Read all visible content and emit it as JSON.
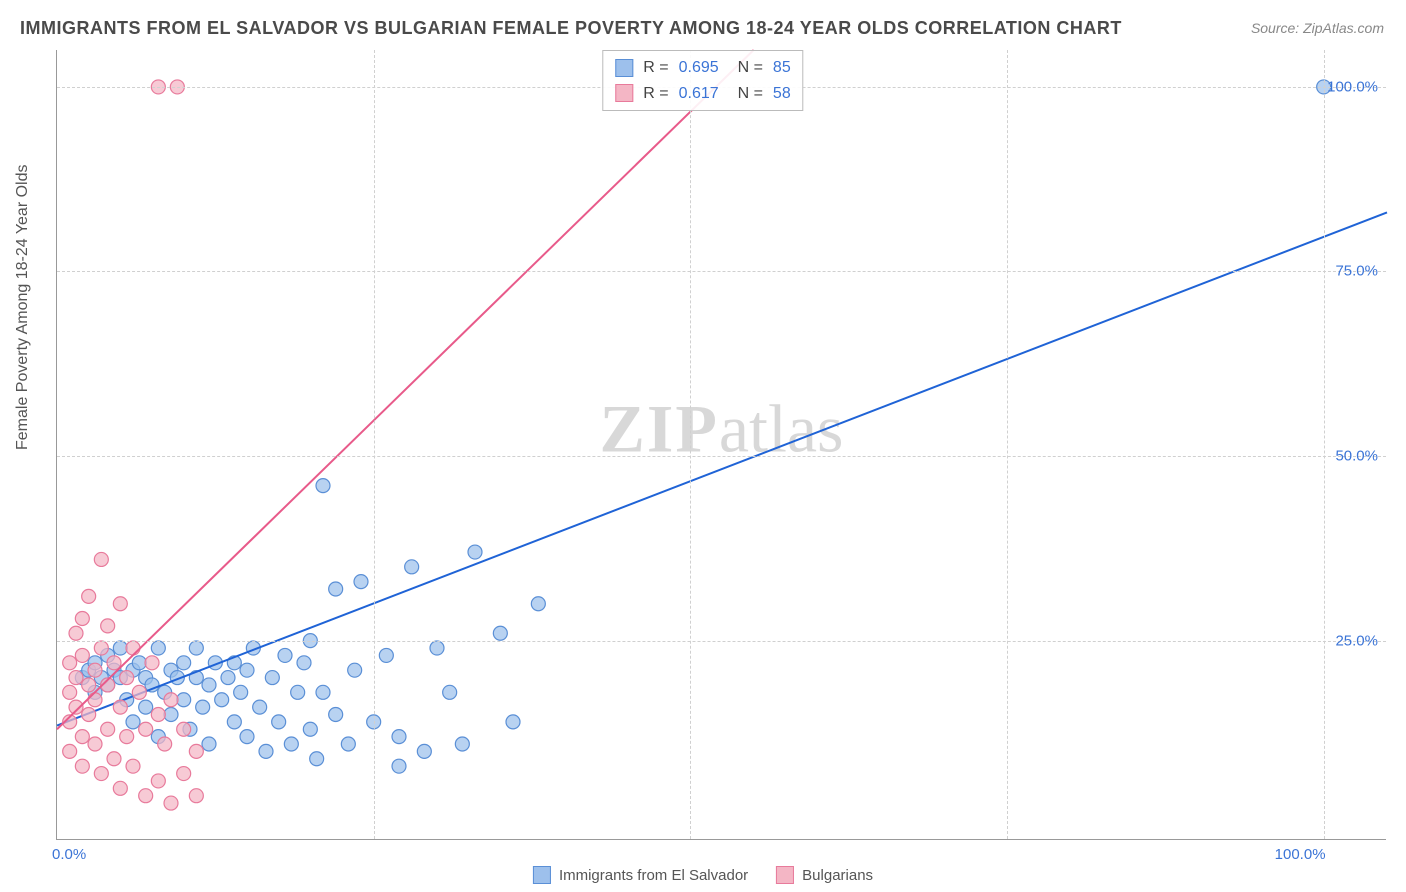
{
  "title": "IMMIGRANTS FROM EL SALVADOR VS BULGARIAN FEMALE POVERTY AMONG 18-24 YEAR OLDS CORRELATION CHART",
  "source_label": "Source:",
  "source_value": "ZipAtlas.com",
  "watermark_a": "ZIP",
  "watermark_b": "atlas",
  "chart": {
    "type": "scatter",
    "xlim": [
      0,
      105
    ],
    "ylim": [
      -2,
      105
    ],
    "ytick_labels": [
      "25.0%",
      "50.0%",
      "75.0%",
      "100.0%"
    ],
    "ytick_values": [
      25,
      50,
      75,
      100
    ],
    "xtick_labels": [
      "0.0%",
      "100.0%"
    ],
    "xtick_values": [
      0,
      100
    ],
    "yaxis_label": "Female Poverty Among 18-24 Year Olds",
    "grid_color": "#d0d0d0",
    "background_color": "#ffffff",
    "axis_color": "#999999",
    "tick_color": "#3b74d6",
    "series": [
      {
        "name": "Immigrants from El Salvador",
        "marker_color_fill": "#9dc0ec",
        "marker_color_stroke": "#5a8fd6",
        "marker_opacity": 0.72,
        "marker_radius": 7,
        "line_color": "#1f63d6",
        "line_width": 2,
        "R": "0.695",
        "N": "85",
        "trend": {
          "x1": 0,
          "y1": 13.5,
          "x2": 105,
          "y2": 83
        },
        "points": [
          [
            2,
            20
          ],
          [
            2.5,
            21
          ],
          [
            3,
            22
          ],
          [
            3,
            18
          ],
          [
            3.5,
            20
          ],
          [
            4,
            23
          ],
          [
            4,
            19
          ],
          [
            4.5,
            21
          ],
          [
            5,
            20
          ],
          [
            5,
            24
          ],
          [
            5.5,
            17
          ],
          [
            6,
            21
          ],
          [
            6,
            14
          ],
          [
            6.5,
            22
          ],
          [
            7,
            20
          ],
          [
            7,
            16
          ],
          [
            7.5,
            19
          ],
          [
            8,
            24
          ],
          [
            8,
            12
          ],
          [
            8.5,
            18
          ],
          [
            9,
            21
          ],
          [
            9,
            15
          ],
          [
            9.5,
            20
          ],
          [
            10,
            22
          ],
          [
            10,
            17
          ],
          [
            10.5,
            13
          ],
          [
            11,
            20
          ],
          [
            11,
            24
          ],
          [
            11.5,
            16
          ],
          [
            12,
            19
          ],
          [
            12,
            11
          ],
          [
            12.5,
            22
          ],
          [
            13,
            17
          ],
          [
            13.5,
            20
          ],
          [
            14,
            14
          ],
          [
            14,
            22
          ],
          [
            14.5,
            18
          ],
          [
            15,
            21
          ],
          [
            15,
            12
          ],
          [
            15.5,
            24
          ],
          [
            16,
            16
          ],
          [
            16.5,
            10
          ],
          [
            17,
            20
          ],
          [
            17.5,
            14
          ],
          [
            18,
            23
          ],
          [
            18.5,
            11
          ],
          [
            19,
            18
          ],
          [
            19.5,
            22
          ],
          [
            20,
            13
          ],
          [
            20,
            25
          ],
          [
            20.5,
            9
          ],
          [
            21,
            18
          ],
          [
            22,
            15
          ],
          [
            22,
            32
          ],
          [
            23,
            11
          ],
          [
            23.5,
            21
          ],
          [
            24,
            33
          ],
          [
            25,
            14
          ],
          [
            26,
            23
          ],
          [
            27,
            12
          ],
          [
            27,
            8
          ],
          [
            28,
            35
          ],
          [
            30,
            24
          ],
          [
            31,
            18
          ],
          [
            33,
            37
          ],
          [
            35,
            26
          ],
          [
            36,
            14
          ],
          [
            38,
            30
          ],
          [
            32,
            11
          ],
          [
            29,
            10
          ],
          [
            21,
            46
          ],
          [
            100,
            100
          ]
        ]
      },
      {
        "name": "Bulgarians",
        "marker_color_fill": "#f4b6c5",
        "marker_color_stroke": "#e87a9b",
        "marker_opacity": 0.72,
        "marker_radius": 7,
        "line_color": "#e85a8a",
        "line_width": 2,
        "R": "0.617",
        "N": "58",
        "trend": {
          "x1": 0,
          "y1": 13,
          "x2": 55,
          "y2": 105
        },
        "points": [
          [
            1,
            14
          ],
          [
            1,
            18
          ],
          [
            1,
            22
          ],
          [
            1,
            10
          ],
          [
            1.5,
            26
          ],
          [
            1.5,
            16
          ],
          [
            1.5,
            20
          ],
          [
            2,
            23
          ],
          [
            2,
            12
          ],
          [
            2,
            28
          ],
          [
            2,
            8
          ],
          [
            2.5,
            19
          ],
          [
            2.5,
            15
          ],
          [
            2.5,
            31
          ],
          [
            3,
            21
          ],
          [
            3,
            11
          ],
          [
            3,
            17
          ],
          [
            3.5,
            24
          ],
          [
            3.5,
            7
          ],
          [
            3.5,
            36
          ],
          [
            4,
            19
          ],
          [
            4,
            13
          ],
          [
            4,
            27
          ],
          [
            4.5,
            22
          ],
          [
            4.5,
            9
          ],
          [
            5,
            16
          ],
          [
            5,
            5
          ],
          [
            5,
            30
          ],
          [
            5.5,
            20
          ],
          [
            5.5,
            12
          ],
          [
            6,
            24
          ],
          [
            6,
            8
          ],
          [
            6.5,
            18
          ],
          [
            7,
            13
          ],
          [
            7,
            4
          ],
          [
            7.5,
            22
          ],
          [
            8,
            15
          ],
          [
            8,
            6
          ],
          [
            8.5,
            11
          ],
          [
            9,
            17
          ],
          [
            9,
            3
          ],
          [
            10,
            13
          ],
          [
            10,
            7
          ],
          [
            11,
            10
          ],
          [
            11,
            4
          ],
          [
            8,
            100
          ],
          [
            9.5,
            100
          ]
        ]
      }
    ],
    "bottom_legend": [
      {
        "label": "Immigrants from El Salvador",
        "fill": "#9dc0ec",
        "stroke": "#5a8fd6"
      },
      {
        "label": "Bulgarians",
        "fill": "#f4b6c5",
        "stroke": "#e87a9b"
      }
    ]
  }
}
